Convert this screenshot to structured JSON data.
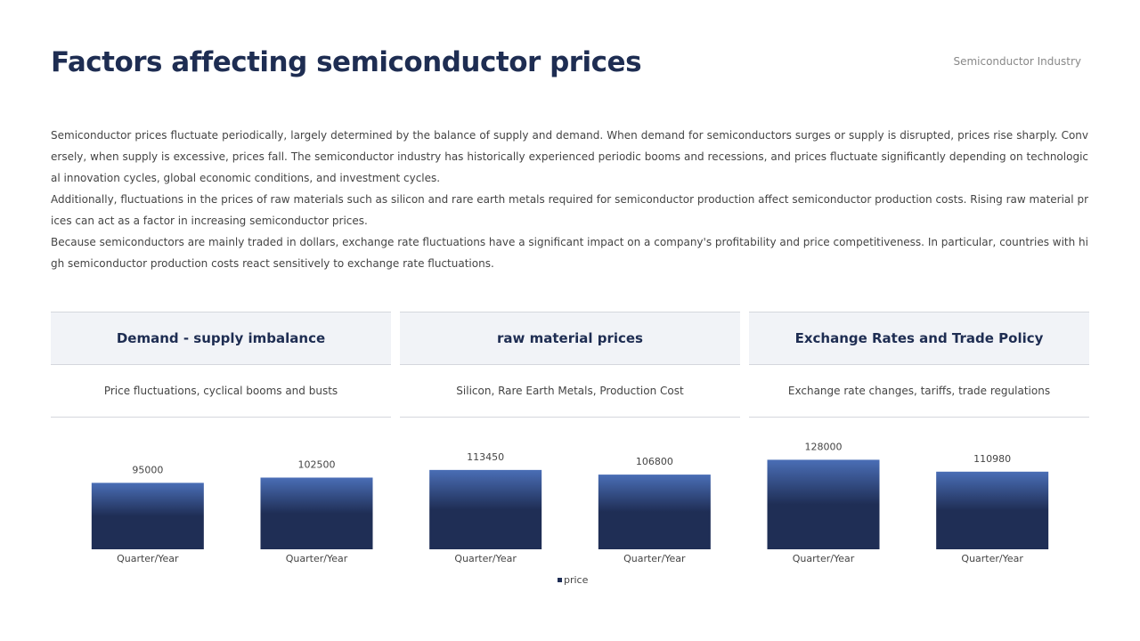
{
  "header": {
    "title": "Factors affecting semiconductor prices",
    "tag": "Semiconductor Industry"
  },
  "paragraphs": [
    "Semiconductor prices fluctuate periodically, largely determined by the balance of supply and demand. When demand for semiconductors surges or supply is disrupted, prices rise sharply. Conversely, when supply is excessive, prices fall. The semiconductor industry has historically experienced periodic booms and recessions, and prices fluctuate significantly depending on technological innovation cycles, global economic conditions, and investment cycles.",
    "Additionally, fluctuations in the prices of raw materials such as silicon and rare earth metals required for semiconductor production affect semiconductor production costs. Rising raw material prices can act as a factor in increasing semiconductor prices.",
    "Because semiconductors are mainly traded in dollars, exchange rate fluctuations have a significant impact on a company's profitability and price competitiveness. In particular, countries with high semiconductor production costs react sensitively to exchange rate fluctuations."
  ],
  "cards": [
    {
      "title": "Demand - supply imbalance",
      "subtitle": "Price fluctuations, cyclical booms and busts"
    },
    {
      "title": "raw material prices",
      "subtitle": "Silicon, Rare Earth Metals, Production Cost"
    },
    {
      "title": "Exchange Rates and Trade Policy",
      "subtitle": "Exchange rate changes, tariffs, trade regulations"
    }
  ],
  "chart_data": {
    "type": "bar",
    "categories": [
      "Quarter/Year",
      "Quarter/Year",
      "Quarter/Year",
      "Quarter/Year",
      "Quarter/Year",
      "Quarter/Year"
    ],
    "series": [
      {
        "name": "price",
        "color": "#1f2e55",
        "values": [
          95000,
          102500,
          113450,
          106800,
          128000,
          110980
        ]
      }
    ],
    "ylim": [
      0,
      140000
    ]
  }
}
